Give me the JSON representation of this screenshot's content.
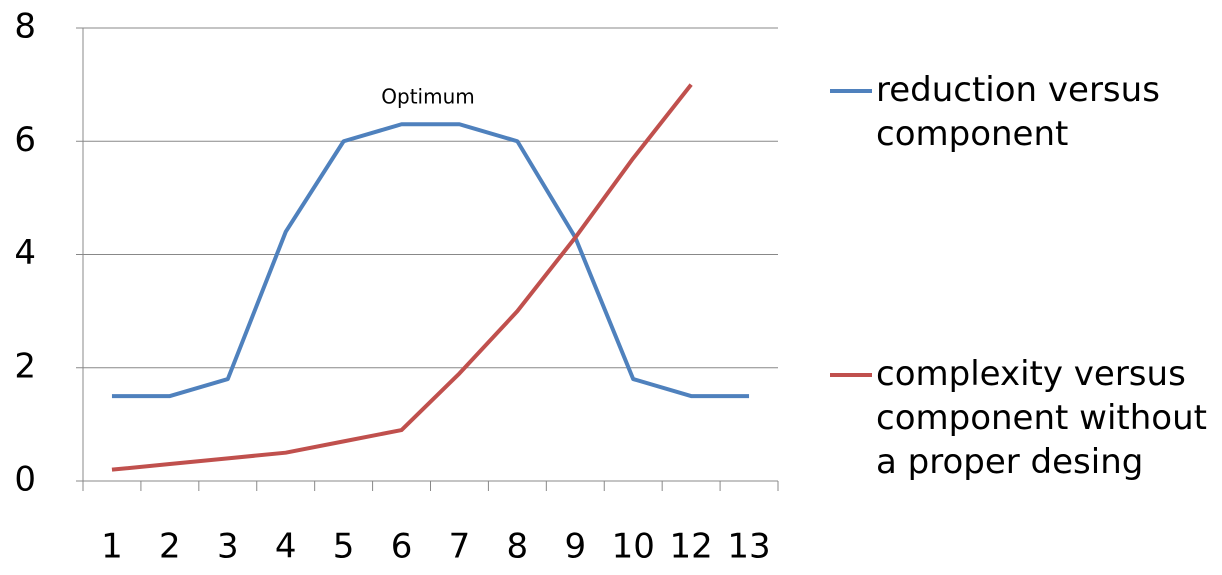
{
  "chart_data": {
    "type": "line",
    "annotation": "Optimum",
    "categories": [
      "1",
      "2",
      "3",
      "4",
      "5",
      "6",
      "7",
      "8",
      "9",
      "10",
      "12",
      "13"
    ],
    "series": [
      {
        "name": "reduction versus component",
        "color": "#4f81bd",
        "values": [
          1.5,
          1.5,
          1.8,
          4.4,
          6.0,
          6.3,
          6.3,
          6.0,
          4.3,
          1.8,
          1.5,
          1.5
        ]
      },
      {
        "name": "complexity versus component without a proper desing",
        "color": "#c0504d",
        "values": [
          0.2,
          0.3,
          0.4,
          0.5,
          0.7,
          0.9,
          1.9,
          3.0,
          4.3,
          5.7,
          7.0,
          null
        ]
      }
    ],
    "ylim": [
      0,
      8
    ],
    "yticks": [
      0,
      2,
      4,
      6,
      8
    ],
    "grid": true
  }
}
